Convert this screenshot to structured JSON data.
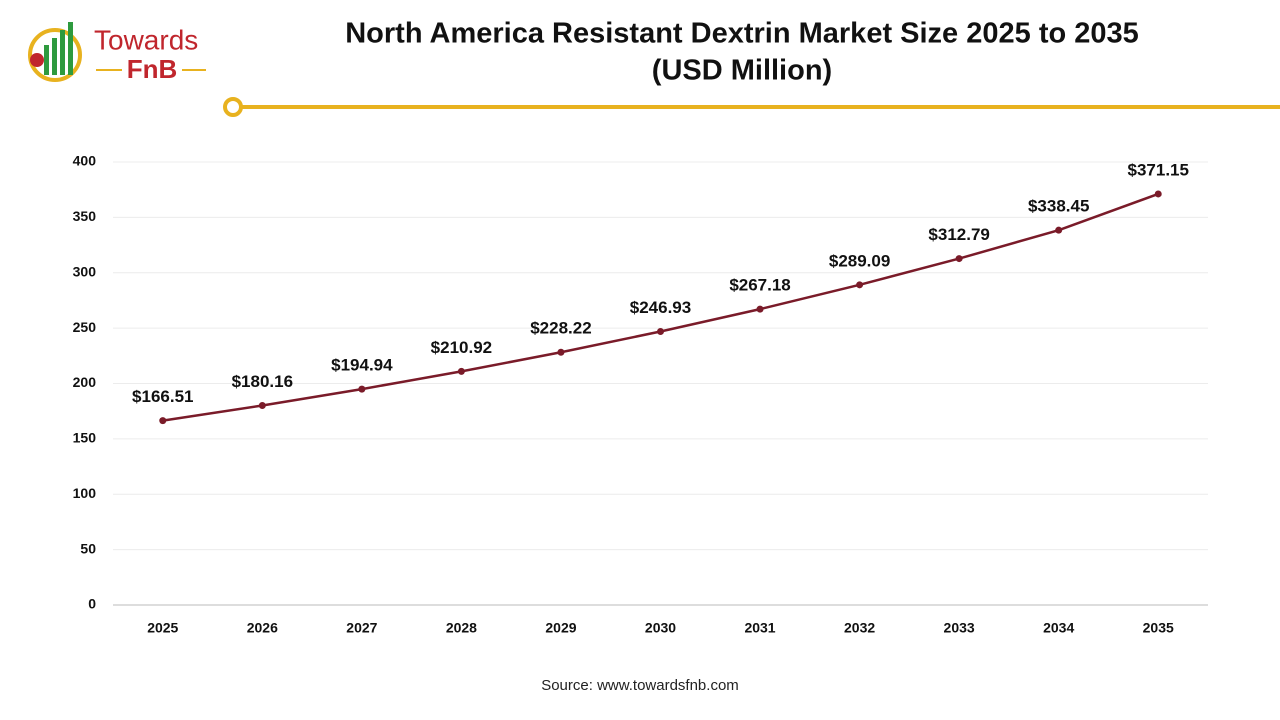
{
  "logo": {
    "line1": "Towards",
    "line2": "FnB"
  },
  "chart_data": {
    "type": "line",
    "title": "North America Resistant Dextrin Market Size 2025 to 2035",
    "subtitle": "(USD Million)",
    "categories": [
      "2025",
      "2026",
      "2027",
      "2028",
      "2029",
      "2030",
      "2031",
      "2032",
      "2033",
      "2034",
      "2035"
    ],
    "series": [
      {
        "color": "#7a1b29",
        "values": [
          166.51,
          180.16,
          194.94,
          210.92,
          228.22,
          246.93,
          267.18,
          289.09,
          312.79,
          338.45,
          371.15
        ],
        "value_labels": [
          "$166.51",
          "$180.16",
          "$194.94",
          "$210.92",
          "$228.22",
          "$246.93",
          "$267.18",
          "$289.09",
          "$312.79",
          "$338.45",
          "$371.15"
        ]
      }
    ],
    "ylim": [
      0,
      400
    ],
    "yticks": [
      0,
      50,
      100,
      150,
      200,
      250,
      300,
      350,
      400
    ],
    "grid": true,
    "source": "Source: www.towardsfnb.com"
  }
}
